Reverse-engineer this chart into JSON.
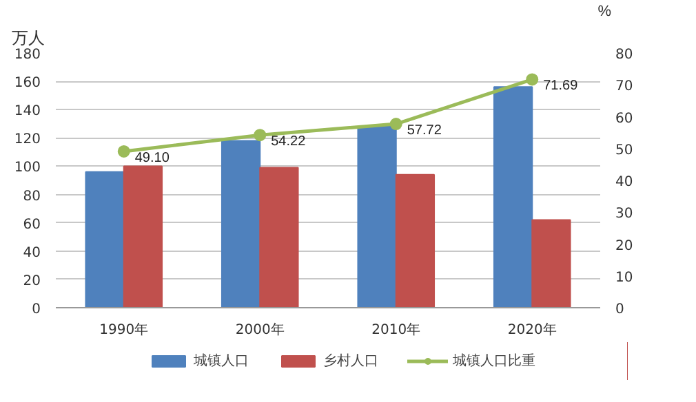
{
  "chart_data": {
    "type": "bar",
    "categories": [
      "1990年",
      "2000年",
      "2010年",
      "2020年"
    ],
    "ylabel": "万人",
    "y2label": "%",
    "ylim": [
      0,
      180
    ],
    "yticks": [
      0,
      20,
      40,
      60,
      80,
      100,
      120,
      140,
      160,
      180
    ],
    "y2lim": [
      0,
      80
    ],
    "y2ticks": [
      0,
      10,
      20,
      30,
      40,
      50,
      60,
      70,
      80
    ],
    "grid": "y",
    "legend": "bottom",
    "marker": "circle",
    "series": [
      {
        "name": "城镇人口",
        "color": "#4f81bd",
        "values": [
          96,
          118,
          128,
          156
        ]
      },
      {
        "name": "乡村人口",
        "color": "#c0504d",
        "values": [
          100,
          99,
          94,
          62
        ]
      },
      {
        "name": "城镇人口比重",
        "type": "line",
        "axis": "y2",
        "color": "#9bbb59",
        "values": [
          49.1,
          54.22,
          57.72,
          71.69
        ],
        "value_labels": [
          "49.10",
          "54.22",
          "57.72",
          "71.69"
        ]
      }
    ]
  }
}
